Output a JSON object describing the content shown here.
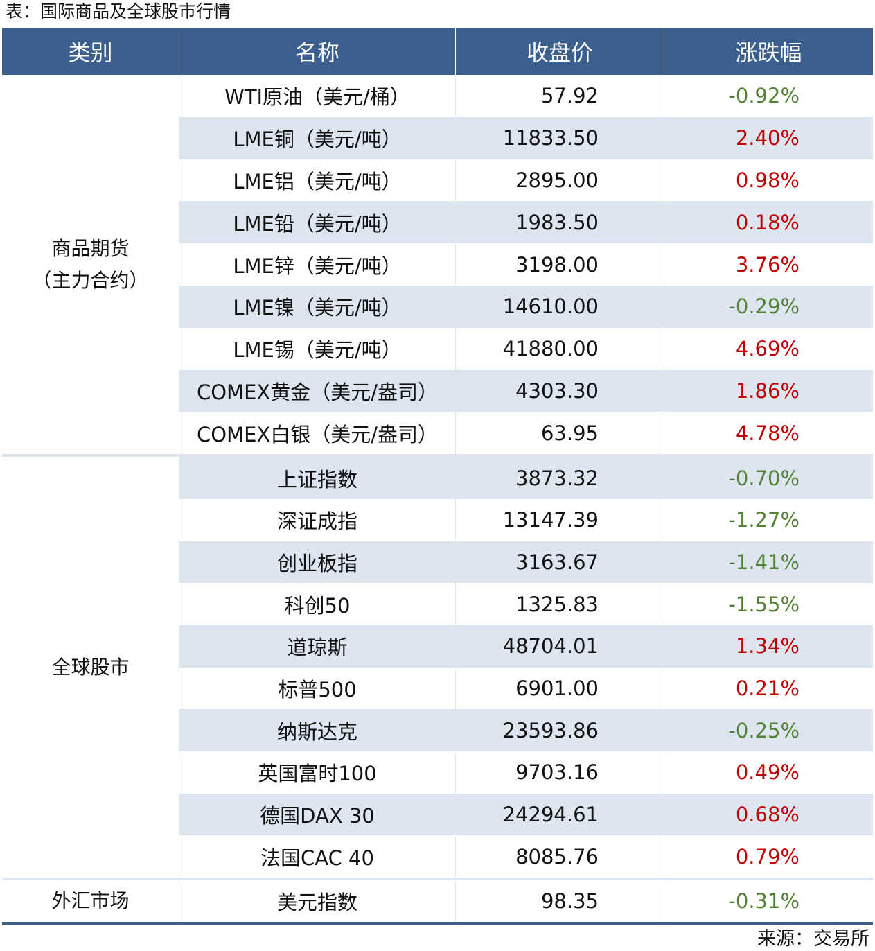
{
  "title": "表：国际商品及全球股市行情",
  "table": {
    "headers": [
      "类别",
      "名称",
      "收盘价",
      "涨跌幅"
    ],
    "groups": [
      {
        "category": [
          "商品期货",
          "（主力合约）"
        ],
        "rows": [
          [
            "WTI原油（美元/桶）",
            "57.92",
            "-0.92%"
          ],
          [
            "LME铜（美元/吨）",
            "11833.50",
            "2.40%"
          ],
          [
            "LME铝（美元/吨）",
            "2895.00",
            "0.98%"
          ],
          [
            "LME铅（美元/吨）",
            "1983.50",
            "0.18%"
          ],
          [
            "LME锌（美元/吨）",
            "3198.00",
            "3.76%"
          ],
          [
            "LME镍（美元/吨）",
            "14610.00",
            "-0.29%"
          ],
          [
            "LME锡（美元/吨）",
            "41880.00",
            "4.69%"
          ],
          [
            "COMEX黄金（美元/盎司）",
            "4303.30",
            "1.86%"
          ],
          [
            "COMEX白银（美元/盎司）",
            "63.95",
            "4.78%"
          ]
        ]
      },
      {
        "category": [
          "全球股市"
        ],
        "rows": [
          [
            "上证指数",
            "3873.32",
            "-0.70%"
          ],
          [
            "深证成指",
            "13147.39",
            "-1.27%"
          ],
          [
            "创业板指",
            "3163.67",
            "-1.41%"
          ],
          [
            "科创50",
            "1325.83",
            "-1.55%"
          ],
          [
            "道琼斯",
            "48704.01",
            "1.34%"
          ],
          [
            "标普500",
            "6901.00",
            "0.21%"
          ],
          [
            "纳斯达克",
            "23593.86",
            "-0.25%"
          ],
          [
            "英国富时100",
            "9703.16",
            "0.49%"
          ],
          [
            "德国DAX 30",
            "24294.61",
            "0.68%"
          ],
          [
            "法国CAC 40",
            "8085.76",
            "0.79%"
          ]
        ]
      },
      {
        "category": [
          "外汇市场"
        ],
        "rows": [
          [
            "美元指数",
            "98.35",
            "-0.31%"
          ]
        ]
      }
    ]
  },
  "source": "来源：交易所"
}
